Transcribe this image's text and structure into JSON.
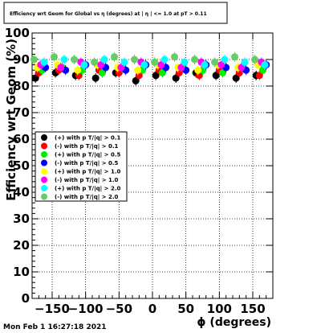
{
  "chart_data": {
    "type": "scatter",
    "title": "Efficiency wrt Geom for Global vs η (degrees) at | η | <= 1.0 at pT > 0.11",
    "xlabel": "ϕ (degrees)",
    "ylabel": "Efficiency wrt Geom (%)",
    "xlim": [
      -180,
      180
    ],
    "ylim": [
      0,
      100
    ],
    "x_ticks": [
      -150,
      -100,
      -50,
      0,
      50,
      100,
      150
    ],
    "x_tick_labels": [
      "−150",
      "−100",
      "−50",
      "0",
      "50",
      "100",
      "150"
    ],
    "y_ticks": [
      0,
      10,
      20,
      30,
      40,
      50,
      60,
      70,
      80,
      90,
      100
    ],
    "y_tick_labels": [
      "0",
      "10",
      "20",
      "30",
      "40",
      "50",
      "60",
      "70",
      "80",
      "90",
      "100"
    ],
    "grid": true,
    "legend_placement": "center-left",
    "series": [
      {
        "name": "(+) with p T/|q| > 0.1",
        "color": "#000000",
        "x": [
          -175,
          -145,
          -115,
          -85,
          -55,
          -25,
          5,
          35,
          65,
          95,
          125,
          155
        ],
        "y": [
          83,
          85,
          84,
          83,
          85,
          82,
          84,
          83,
          85,
          84,
          83,
          84
        ]
      },
      {
        "name": "(-) with p T/|q| > 0.1",
        "color": "#ff0000",
        "x": [
          -170,
          -140,
          -110,
          -80,
          -50,
          -20,
          10,
          40,
          70,
          100,
          130,
          160
        ],
        "y": [
          85,
          86,
          84,
          86,
          85,
          84,
          86,
          85,
          84,
          86,
          85,
          84
        ]
      },
      {
        "name": "(+) with p T/|q| > 0.5",
        "color": "#00ee00",
        "x": [
          -165,
          -135,
          -105,
          -75,
          -45,
          -15,
          15,
          45,
          75,
          105,
          135,
          165
        ],
        "y": [
          86,
          87,
          86,
          85,
          87,
          86,
          85,
          87,
          86,
          85,
          87,
          86
        ]
      },
      {
        "name": "(-) with p T/|q| > 0.5",
        "color": "#0000ff",
        "x": [
          -160,
          -130,
          -100,
          -70,
          -40,
          -10,
          20,
          50,
          80,
          110,
          140,
          170
        ],
        "y": [
          87,
          86,
          88,
          87,
          86,
          88,
          87,
          86,
          88,
          87,
          86,
          88
        ]
      },
      {
        "name": "(+) with p T/|q| > 1.0",
        "color": "#ffff00",
        "x": [
          -172,
          -142,
          -112,
          -82,
          -52,
          -22,
          8,
          38,
          68,
          98,
          128,
          158
        ],
        "y": [
          87,
          88,
          86,
          88,
          87,
          86,
          88,
          87,
          86,
          88,
          87,
          88
        ]
      },
      {
        "name": "(-) with p T/|q| > 1.0",
        "color": "#ff00ff",
        "x": [
          -167,
          -137,
          -107,
          -77,
          -47,
          -17,
          13,
          43,
          73,
          103,
          133,
          163
        ],
        "y": [
          88,
          87,
          89,
          88,
          87,
          89,
          88,
          87,
          89,
          88,
          87,
          89
        ]
      },
      {
        "name": "(+) with p T/|q| > 2.0",
        "color": "#00ffff",
        "x": [
          -162,
          -132,
          -102,
          -72,
          -42,
          -12,
          18,
          48,
          78,
          108,
          138,
          168
        ],
        "y": [
          89,
          90,
          88,
          90,
          89,
          88,
          90,
          89,
          88,
          90,
          89,
          88
        ]
      },
      {
        "name": "(-) with p T/|q| > 2.0",
        "color": "#66cc66",
        "x": [
          -177,
          -147,
          -117,
          -87,
          -57,
          -27,
          3,
          33,
          63,
          93,
          123,
          153
        ],
        "y": [
          90,
          91,
          90,
          89,
          91,
          90,
          89,
          91,
          90,
          89,
          91,
          90
        ]
      }
    ]
  },
  "footer": {
    "timestamp": "Mon Feb  1 16:27:18 2021"
  }
}
